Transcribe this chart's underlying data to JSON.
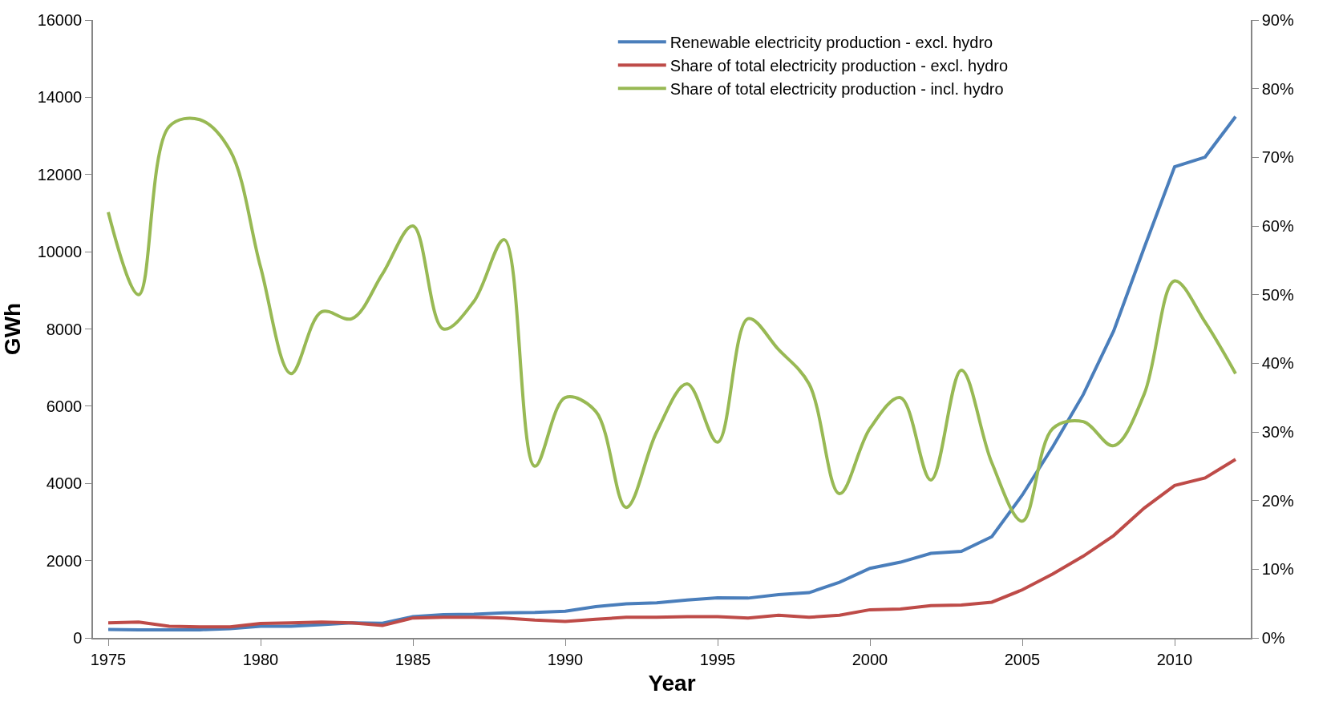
{
  "chart_data": {
    "type": "line",
    "xlabel": "Year",
    "ylabel": "GWh",
    "x": [
      1975,
      1976,
      1977,
      1978,
      1979,
      1980,
      1981,
      1982,
      1983,
      1984,
      1985,
      1986,
      1987,
      1988,
      1989,
      1990,
      1991,
      1992,
      1993,
      1994,
      1995,
      1996,
      1997,
      1998,
      1999,
      2000,
      2001,
      2002,
      2003,
      2004,
      2005,
      2006,
      2007,
      2008,
      2009,
      2010,
      2011,
      2012
    ],
    "xlim": [
      1974.5,
      2012.5
    ],
    "xticks": [
      1975,
      1980,
      1985,
      1990,
      1995,
      2000,
      2005,
      2010
    ],
    "ylim": [
      0,
      16000
    ],
    "yticks": [
      0,
      2000,
      4000,
      6000,
      8000,
      10000,
      12000,
      14000,
      16000
    ],
    "y2lim": [
      0,
      90
    ],
    "y2ticks": [
      {
        "value": 0,
        "label": "0%"
      },
      {
        "value": 10,
        "label": "10%"
      },
      {
        "value": 20,
        "label": "20%"
      },
      {
        "value": 30,
        "label": "30%"
      },
      {
        "value": 40,
        "label": "40%"
      },
      {
        "value": 50,
        "label": "50%"
      },
      {
        "value": 60,
        "label": "60%"
      },
      {
        "value": 70,
        "label": "70%"
      },
      {
        "value": 80,
        "label": "80%"
      },
      {
        "value": 90,
        "label": "90%"
      }
    ],
    "legend": "top",
    "marker": "none",
    "series": [
      {
        "name": "Renewable electricity production - excl. hydro",
        "color": "#4a7ebb",
        "values": [
          220,
          210,
          210,
          210,
          240,
          300,
          300,
          340,
          390,
          380,
          550,
          600,
          610,
          650,
          660,
          690,
          810,
          880,
          910,
          980,
          1040,
          1030,
          1120,
          1170,
          1440,
          1800,
          1960,
          2190,
          2240,
          2620,
          3700,
          4950,
          6300,
          7950,
          10100,
          12200,
          12450,
          13500
        ]
      },
      {
        "name": "Share of total electricity production - excl. hydro",
        "color": "#be4b48",
        "axis": "y2",
        "values": [
          2.2,
          2.3,
          1.7,
          1.6,
          1.6,
          2.1,
          2.2,
          2.3,
          2.2,
          1.8,
          2.9,
          3.0,
          3.0,
          2.9,
          2.6,
          2.4,
          2.7,
          3.0,
          3.0,
          3.1,
          3.1,
          2.9,
          3.3,
          3.0,
          3.3,
          4.1,
          4.2,
          4.7,
          4.8,
          5.2,
          7.0,
          9.3,
          11.9,
          14.9,
          18.9,
          22.2,
          23.3,
          26.0
        ]
      },
      {
        "name": "Share of total electricity production - incl. hydro",
        "color": "#98b954",
        "axis": "y2",
        "values": [
          62,
          50,
          74.5,
          75.5,
          71,
          54,
          38.5,
          47.5,
          46.5,
          53,
          60,
          45,
          49,
          58,
          25,
          35,
          33,
          19,
          30,
          37,
          28.5,
          46.5,
          42,
          37,
          21,
          30.5,
          35,
          23,
          39,
          25.5,
          17,
          30.5,
          31.5,
          28,
          35.5,
          52,
          46,
          38.5
        ]
      }
    ]
  }
}
